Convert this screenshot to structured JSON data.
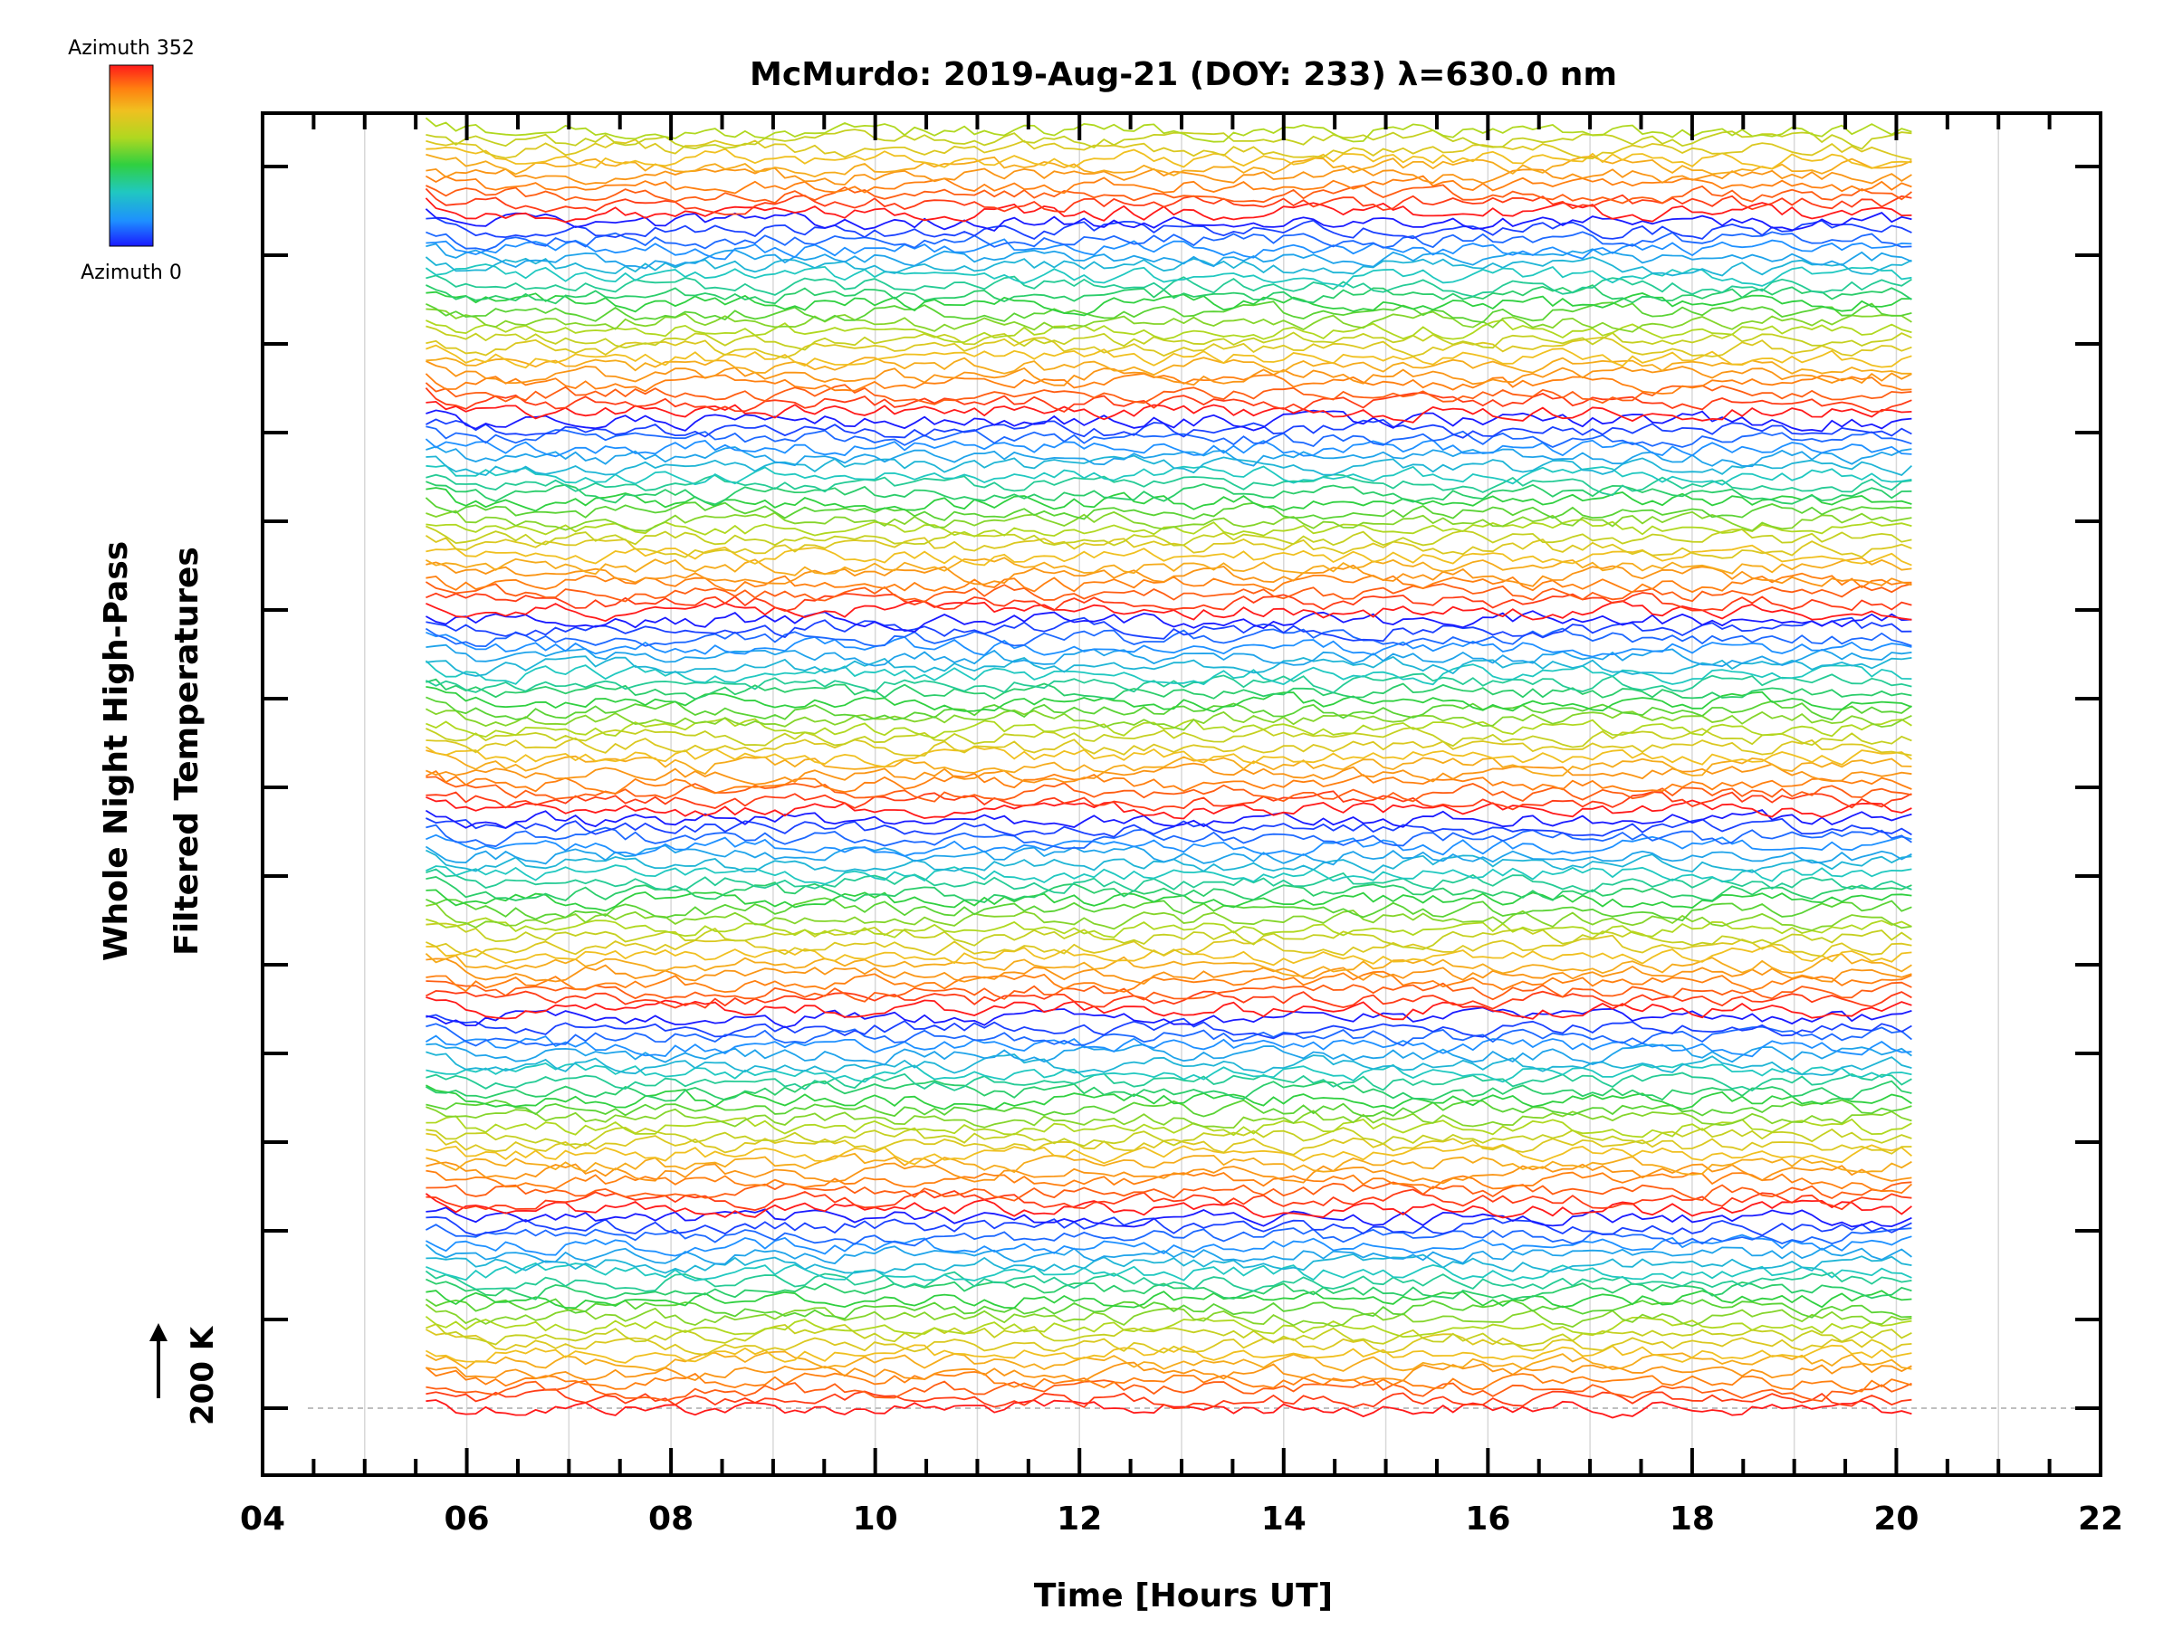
{
  "chart_data": {
    "type": "line",
    "title": "McMurdo: 2019-Aug-21 (DOY: 233) λ=630.0 nm",
    "xlabel": "Time [Hours UT]",
    "ylabel_lines": [
      "Whole Night High-Pass",
      "Filtered Temperatures"
    ],
    "xlim": [
      4,
      22
    ],
    "xticks": [
      "04",
      "06",
      "08",
      "10",
      "12",
      "14",
      "16",
      "18",
      "20",
      "22"
    ],
    "data_x_range": [
      5.6,
      20.15
    ],
    "grid": "vertical",
    "scale_marker": "200 K",
    "colorbar": {
      "label_top": "Azimuth 352",
      "label_bottom": "Azimuth 0",
      "colors": [
        "#1a1aff",
        "#1e90ff",
        "#20c8c0",
        "#30d040",
        "#b0d820",
        "#f0c020",
        "#ff8010",
        "#ff1a1a"
      ]
    },
    "series_count": 142,
    "series_description": "Stacked offset traces, one per azimuth, colored by azimuth from 0 (blue) to 352 (red)"
  }
}
